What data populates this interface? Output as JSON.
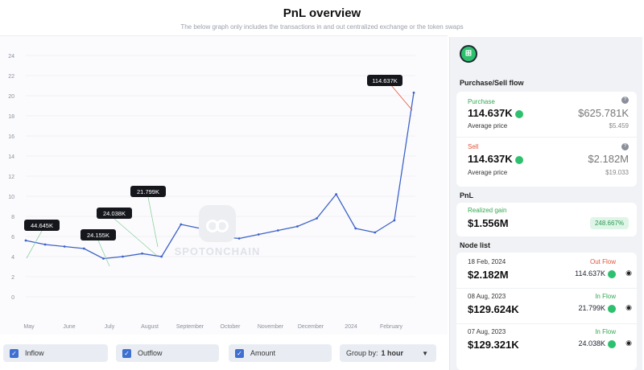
{
  "header": {
    "title": "PnL overview",
    "subtitle": "The below graph only includes the transactions in and out centralized exchange or the token swaps"
  },
  "chart": {
    "y_ticks": [
      "24",
      "22",
      "20",
      "18",
      "16",
      "14",
      "12",
      "10",
      "8",
      "6",
      "4",
      "2",
      "0"
    ],
    "x_ticks": [
      "May",
      "June",
      "July",
      "August",
      "September",
      "October",
      "November",
      "December",
      "2024",
      "February"
    ],
    "watermark": "SPOTONCHAIN",
    "callouts": [
      "44.645K",
      "24.155K",
      "24.038K",
      "21.799K",
      "114.637K"
    ]
  },
  "chart_data": {
    "type": "line",
    "title": "",
    "xlabel": "",
    "ylabel": "",
    "ylim": [
      0,
      24
    ],
    "x": [
      "May",
      "",
      "June",
      "",
      "July",
      "",
      "August",
      "",
      "September",
      "",
      "October",
      "",
      "November",
      "",
      "December",
      "",
      "2024",
      "",
      "February",
      "",
      ""
    ],
    "series": [
      {
        "values": [
          5.6,
          5.2,
          5.0,
          4.8,
          3.8,
          4.0,
          4.3,
          4.0,
          7.2,
          6.8,
          6.0,
          5.8,
          6.2,
          6.6,
          7.0,
          7.8,
          10.2,
          6.8,
          6.4,
          7.6,
          20.3
        ],
        "color": "#3e63c8"
      }
    ],
    "annotations": [
      {
        "label": "44.645K",
        "x": "May"
      },
      {
        "label": "24.155K",
        "x": "July"
      },
      {
        "label": "24.038K",
        "x": "August"
      },
      {
        "label": "21.799K",
        "x": "August"
      },
      {
        "label": "114.637K",
        "x": "February"
      }
    ]
  },
  "controls": {
    "inflow": "Inflow",
    "outflow": "Outflow",
    "amount": "Amount",
    "group_by_label": "Group by:",
    "group_by_value": "1 hour"
  },
  "sidebar": {
    "purchase_sell_title": "Purchase/Sell flow",
    "purchase": {
      "label": "Purchase",
      "amount": "114.637K",
      "usd": "$625.781K",
      "avg_label": "Average price",
      "avg_value": "$5.459"
    },
    "sell": {
      "label": "Sell",
      "amount": "114.637K",
      "usd": "$2.182M",
      "avg_label": "Average price",
      "avg_value": "$19.033"
    },
    "pnl_title": "PnL",
    "realized": {
      "label": "Realized gain",
      "value": "$1.556M",
      "percent": "248.667%"
    },
    "node_list_title": "Node list",
    "nodes": [
      {
        "date": "18 Feb, 2024",
        "flow": "Out Flow",
        "usd": "$2.182M",
        "amount": "114.637K"
      },
      {
        "date": "08 Aug, 2023",
        "flow": "In Flow",
        "usd": "$129.624K",
        "amount": "21.799K"
      },
      {
        "date": "07 Aug, 2023",
        "flow": "In Flow",
        "usd": "$129.321K",
        "amount": "24.038K"
      }
    ]
  },
  "colors": {
    "line": "#3e63c8",
    "accent_green": "#2ec06e",
    "out_red": "#e0553b",
    "checkbox": "#3f6fd1"
  }
}
